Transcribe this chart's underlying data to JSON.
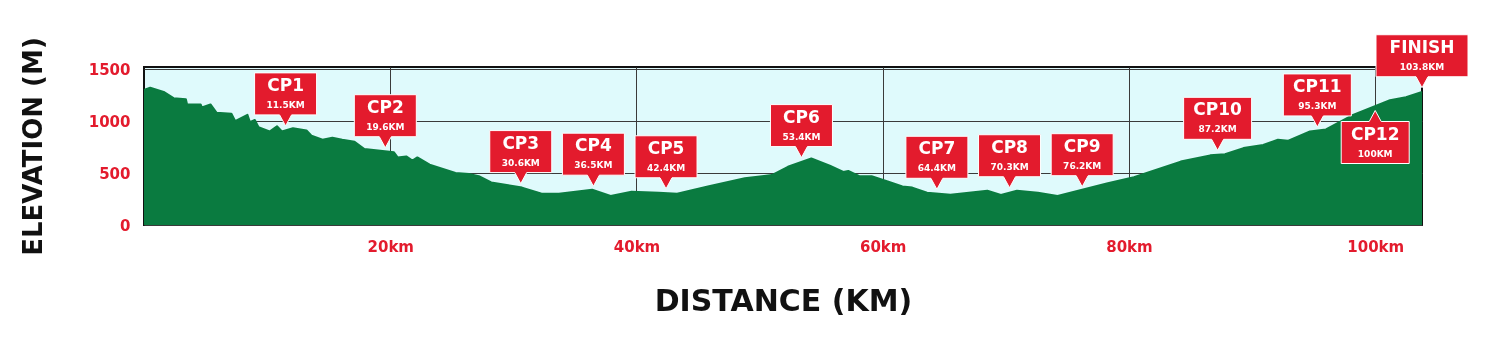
{
  "chart_data": {
    "type": "area",
    "xlabel": "DISTANCE (KM)",
    "ylabel": "ELEVATION (M)",
    "xlim": [
      0,
      103.8
    ],
    "ylim": [
      0,
      1520
    ],
    "xticks": [
      {
        "value": 20,
        "label": "20km"
      },
      {
        "value": 40,
        "label": "40km"
      },
      {
        "value": 60,
        "label": "60km"
      },
      {
        "value": 80,
        "label": "80km"
      },
      {
        "value": 100,
        "label": "100km"
      }
    ],
    "yticks": [
      0,
      500,
      1000,
      1500
    ],
    "grid": true,
    "x": [
      0,
      0.5,
      1.6,
      2.4,
      3.4,
      3.5,
      4.6,
      4.7,
      5.4,
      5.9,
      7.1,
      7.4,
      8.4,
      8.6,
      9.0,
      9.3,
      10.2,
      10.8,
      11.2,
      12.1,
      13.2,
      13.6,
      14.5,
      15.3,
      16.1,
      17.1,
      17.9,
      20.3,
      20.6,
      21.3,
      21.8,
      22.2,
      23.2,
      25.3,
      26.4,
      27.2,
      28.2,
      30.7,
      32.3,
      33.7,
      36.4,
      37.9,
      39.6,
      41.8,
      43.3,
      45.8,
      48.8,
      51.0,
      52.3,
      54.2,
      55.7,
      56.8,
      57.2,
      58.1,
      59.1,
      60.4,
      61.6,
      62.4,
      63.6,
      65.5,
      68.5,
      69.6,
      70.9,
      72.6,
      74.2,
      78.2,
      80.4,
      84.2,
      86.6,
      87.8,
      89.3,
      90.9,
      92.1,
      92.9,
      94.7,
      96.0,
      98.2,
      101.2,
      102.5,
      103.8
    ],
    "series": [
      {
        "color": "#0a7b40",
        "values": [
          1300,
          1320,
          1280,
          1220,
          1210,
          1160,
          1160,
          1130,
          1160,
          1080,
          1070,
          1000,
          1060,
          990,
          1010,
          940,
          900,
          950,
          900,
          930,
          910,
          860,
          820,
          840,
          820,
          800,
          730,
          700,
          650,
          660,
          620,
          650,
          580,
          500,
          490,
          470,
          410,
          360,
          300,
          300,
          340,
          280,
          320,
          310,
          300,
          370,
          450,
          480,
          560,
          640,
          570,
          510,
          520,
          470,
          470,
          420,
          370,
          360,
          310,
          290,
          330,
          290,
          330,
          310,
          280,
          400,
          460,
          610,
          670,
          680,
          740,
          770,
          820,
          810,
          900,
          920,
          1060,
          1200,
          1230,
          1280
        ]
      }
    ],
    "annotations": [
      {
        "text": "CP1\n11.5KM",
        "x": 11.5,
        "y": 915
      },
      {
        "text": "CP2\n19.6KM",
        "x": 19.6,
        "y": 705
      },
      {
        "text": "CP3\n30.6KM",
        "x": 30.6,
        "y": 360
      },
      {
        "text": "CP4\n36.5KM",
        "x": 36.5,
        "y": 335
      },
      {
        "text": "CP5\n42.4KM",
        "x": 42.4,
        "y": 310
      },
      {
        "text": "CP6\n53.4KM",
        "x": 53.4,
        "y": 610
      },
      {
        "text": "CP7\n64.4KM",
        "x": 64.4,
        "y": 305
      },
      {
        "text": "CP8\n70.3KM",
        "x": 70.3,
        "y": 320
      },
      {
        "text": "CP9\n76.2KM",
        "x": 76.2,
        "y": 330
      },
      {
        "text": "CP10\n87.2KM",
        "x": 87.2,
        "y": 680
      },
      {
        "text": "CP11\n95.3KM",
        "x": 95.3,
        "y": 905
      },
      {
        "text": "CP12\n100KM",
        "x": 100,
        "y": 1140
      },
      {
        "text": "FINISH\n103.8KM",
        "x": 103.8,
        "y": 1282
      }
    ]
  }
}
